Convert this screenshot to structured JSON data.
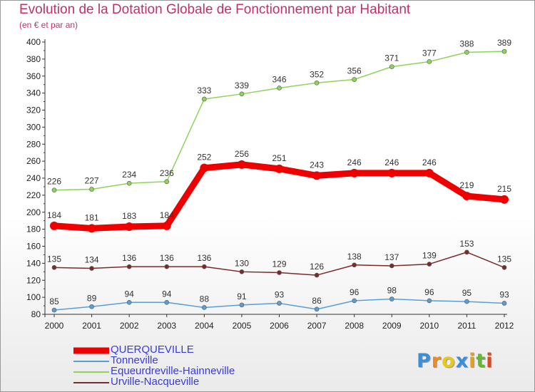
{
  "chart_data": {
    "type": "line",
    "title": "Evolution de la Dotation Globale de Fonctionnement par Habitant",
    "subtitle": "(en € et par an)",
    "xlabel": "",
    "ylabel": "",
    "x": [
      "2000",
      "2001",
      "2002",
      "2003",
      "2004",
      "2005",
      "2006",
      "2007",
      "2008",
      "2009",
      "2010",
      "2011",
      "2012"
    ],
    "ylim": [
      80,
      400
    ],
    "yticks": [
      80,
      100,
      120,
      140,
      160,
      180,
      200,
      220,
      240,
      260,
      280,
      300,
      320,
      340,
      360,
      380,
      400
    ],
    "grid": false,
    "legend_position": "bottom-left",
    "series": [
      {
        "name": "Equeurdreville-Hainneville",
        "color": "#8ed45a",
        "values": [
          226,
          227,
          234,
          236,
          333,
          339,
          346,
          352,
          356,
          371,
          377,
          388,
          389
        ]
      },
      {
        "name": "QUERQUEVILLE",
        "color": "#ee0000",
        "values": [
          184,
          181,
          183,
          184,
          252,
          256,
          251,
          243,
          246,
          246,
          246,
          219,
          215
        ]
      },
      {
        "name": "Urville-Nacqueville",
        "color": "#7a2b2b",
        "values": [
          135,
          134,
          136,
          136,
          136,
          130,
          129,
          126,
          138,
          137,
          139,
          153,
          135
        ]
      },
      {
        "name": "Tonneville",
        "color": "#5a9fd4",
        "values": [
          85,
          89,
          94,
          94,
          88,
          91,
          93,
          86,
          96,
          98,
          96,
          95,
          93
        ]
      }
    ]
  },
  "legend": {
    "items": [
      {
        "label": "QUERQUEVILLE",
        "color": "#ee0000"
      },
      {
        "label": "Tonneville",
        "color": "#5a9fd4"
      },
      {
        "label": "Equeurdreville-Hainneville",
        "color": "#8ed45a"
      },
      {
        "label": "Urville-Nacqueville",
        "color": "#7a2b2b"
      }
    ]
  },
  "logo": {
    "letters": [
      "P",
      "r",
      "o",
      "x",
      "i",
      "t",
      "i"
    ],
    "colors": [
      "#3b8fd6",
      "#f18a1c",
      "#e8c81a",
      "#3b8fd6",
      "#e8a01a",
      "#6ab23a",
      "#e04a1a"
    ]
  }
}
